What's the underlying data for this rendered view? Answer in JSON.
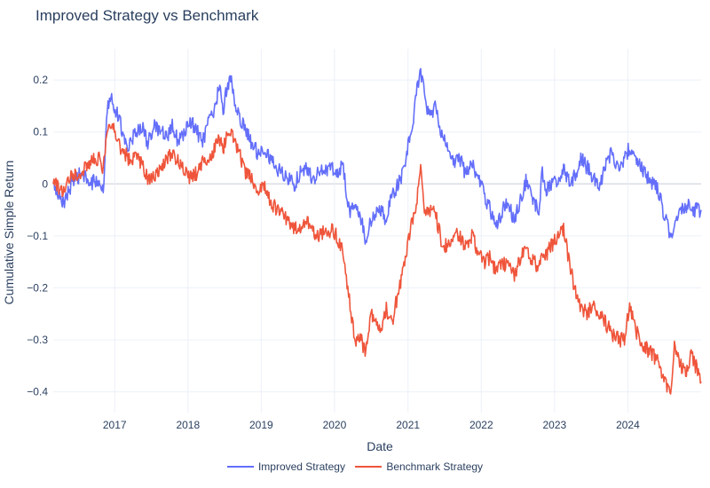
{
  "chart_data": {
    "type": "line",
    "title": "Improved Strategy vs Benchmark",
    "xlabel": "Date",
    "ylabel": "Cumulative Simple Return",
    "x_range": [
      "2016-03-01",
      "2024-12-31"
    ],
    "ylim": [
      -0.44,
      0.26
    ],
    "x_ticks": [
      "2017",
      "2018",
      "2019",
      "2020",
      "2021",
      "2022",
      "2023",
      "2024"
    ],
    "y_ticks": [
      0.2,
      0.1,
      0,
      -0.1,
      -0.2,
      -0.3,
      -0.4
    ],
    "y_tick_labels": [
      "0.2",
      "0.1",
      "0",
      "−0.1",
      "−0.2",
      "−0.3",
      "−0.4"
    ],
    "grid": true,
    "legend_position": "bottom-center",
    "series": [
      {
        "name": "Improved Strategy",
        "color": "#636efa",
        "points": [
          [
            "2016-03-01",
            0.0
          ],
          [
            "2016-04-15",
            -0.04
          ],
          [
            "2016-06-01",
            0.0
          ],
          [
            "2016-07-15",
            0.02
          ],
          [
            "2016-09-01",
            0.0
          ],
          [
            "2016-10-15",
            0.01
          ],
          [
            "2016-11-05",
            -0.02
          ],
          [
            "2016-11-25",
            0.15
          ],
          [
            "2016-12-10",
            0.17
          ],
          [
            "2017-01-10",
            0.14
          ],
          [
            "2017-02-10",
            0.1
          ],
          [
            "2017-03-10",
            0.07
          ],
          [
            "2017-04-15",
            0.1
          ],
          [
            "2017-05-15",
            0.11
          ],
          [
            "2017-06-15",
            0.08
          ],
          [
            "2017-07-15",
            0.11
          ],
          [
            "2017-08-15",
            0.1
          ],
          [
            "2017-09-15",
            0.09
          ],
          [
            "2017-10-15",
            0.11
          ],
          [
            "2017-11-15",
            0.08
          ],
          [
            "2017-12-15",
            0.1
          ],
          [
            "2018-01-15",
            0.12
          ],
          [
            "2018-02-15",
            0.1
          ],
          [
            "2018-03-15",
            0.08
          ],
          [
            "2018-04-15",
            0.12
          ],
          [
            "2018-05-15",
            0.14
          ],
          [
            "2018-06-05",
            0.19
          ],
          [
            "2018-06-25",
            0.14
          ],
          [
            "2018-07-15",
            0.19
          ],
          [
            "2018-08-05",
            0.2
          ],
          [
            "2018-08-25",
            0.15
          ],
          [
            "2018-09-15",
            0.13
          ],
          [
            "2018-10-15",
            0.1
          ],
          [
            "2018-11-15",
            0.08
          ],
          [
            "2018-12-15",
            0.06
          ],
          [
            "2019-01-15",
            0.07
          ],
          [
            "2019-02-15",
            0.05
          ],
          [
            "2019-03-15",
            0.03
          ],
          [
            "2019-04-15",
            0.02
          ],
          [
            "2019-05-15",
            0.01
          ],
          [
            "2019-06-15",
            0.0
          ],
          [
            "2019-07-15",
            0.02
          ],
          [
            "2019-08-15",
            0.03
          ],
          [
            "2019-09-15",
            0.01
          ],
          [
            "2019-10-15",
            0.02
          ],
          [
            "2019-11-15",
            0.03
          ],
          [
            "2019-12-15",
            0.03
          ],
          [
            "2020-01-15",
            0.02
          ],
          [
            "2020-02-10",
            0.04
          ],
          [
            "2020-02-25",
            0.0
          ],
          [
            "2020-03-15",
            -0.06
          ],
          [
            "2020-04-10",
            -0.04
          ],
          [
            "2020-05-15",
            -0.07
          ],
          [
            "2020-06-05",
            -0.11
          ],
          [
            "2020-06-25",
            -0.08
          ],
          [
            "2020-07-15",
            -0.06
          ],
          [
            "2020-08-15",
            -0.05
          ],
          [
            "2020-09-15",
            -0.07
          ],
          [
            "2020-10-15",
            -0.02
          ],
          [
            "2020-11-15",
            0.0
          ],
          [
            "2020-12-15",
            0.03
          ],
          [
            "2021-01-05",
            0.08
          ],
          [
            "2021-01-25",
            0.12
          ],
          [
            "2021-02-15",
            0.18
          ],
          [
            "2021-03-05",
            0.22
          ],
          [
            "2021-03-20",
            0.18
          ],
          [
            "2021-04-10",
            0.14
          ],
          [
            "2021-05-01",
            0.13
          ],
          [
            "2021-05-20",
            0.15
          ],
          [
            "2021-06-15",
            0.1
          ],
          [
            "2021-07-15",
            0.07
          ],
          [
            "2021-08-15",
            0.04
          ],
          [
            "2021-09-15",
            0.05
          ],
          [
            "2021-10-15",
            0.02
          ],
          [
            "2021-11-15",
            0.04
          ],
          [
            "2021-12-15",
            0.01
          ],
          [
            "2022-01-15",
            -0.02
          ],
          [
            "2022-02-15",
            -0.05
          ],
          [
            "2022-03-15",
            -0.08
          ],
          [
            "2022-04-15",
            -0.05
          ],
          [
            "2022-05-15",
            -0.04
          ],
          [
            "2022-06-15",
            -0.07
          ],
          [
            "2022-07-15",
            -0.03
          ],
          [
            "2022-08-15",
            0.01
          ],
          [
            "2022-09-15",
            -0.03
          ],
          [
            "2022-10-15",
            -0.05
          ],
          [
            "2022-11-01",
            0.03
          ],
          [
            "2022-11-15",
            -0.02
          ],
          [
            "2022-12-15",
            0.0
          ],
          [
            "2023-01-15",
            0.01
          ],
          [
            "2023-02-15",
            0.03
          ],
          [
            "2023-03-15",
            0.0
          ],
          [
            "2023-04-15",
            0.02
          ],
          [
            "2023-05-15",
            0.05
          ],
          [
            "2023-06-15",
            0.03
          ],
          [
            "2023-07-15",
            0.01
          ],
          [
            "2023-08-15",
            0.0
          ],
          [
            "2023-09-15",
            0.04
          ],
          [
            "2023-10-15",
            0.06
          ],
          [
            "2023-11-15",
            0.03
          ],
          [
            "2023-12-15",
            0.05
          ],
          [
            "2024-01-10",
            0.07
          ],
          [
            "2024-02-10",
            0.05
          ],
          [
            "2024-03-10",
            0.03
          ],
          [
            "2024-04-10",
            0.01
          ],
          [
            "2024-05-10",
            0.0
          ],
          [
            "2024-06-10",
            -0.02
          ],
          [
            "2024-06-25",
            -0.05
          ],
          [
            "2024-07-10",
            -0.07
          ],
          [
            "2024-08-01",
            -0.1
          ],
          [
            "2024-08-20",
            -0.08
          ],
          [
            "2024-09-15",
            -0.06
          ],
          [
            "2024-10-15",
            -0.04
          ],
          [
            "2024-11-15",
            -0.05
          ],
          [
            "2024-12-31",
            -0.05
          ]
        ]
      },
      {
        "name": "Benchmark Strategy",
        "color": "#ef553b",
        "points": [
          [
            "2016-03-01",
            0.0
          ],
          [
            "2016-04-15",
            -0.01
          ],
          [
            "2016-06-01",
            0.02
          ],
          [
            "2016-07-15",
            0.02
          ],
          [
            "2016-09-01",
            0.04
          ],
          [
            "2016-10-15",
            0.05
          ],
          [
            "2016-11-05",
            0.03
          ],
          [
            "2016-11-25",
            0.1
          ],
          [
            "2016-12-10",
            0.12
          ],
          [
            "2017-01-10",
            0.09
          ],
          [
            "2017-02-10",
            0.06
          ],
          [
            "2017-03-10",
            0.05
          ],
          [
            "2017-04-15",
            0.05
          ],
          [
            "2017-05-15",
            0.04
          ],
          [
            "2017-06-15",
            0.01
          ],
          [
            "2017-07-15",
            0.01
          ],
          [
            "2017-08-15",
            0.03
          ],
          [
            "2017-09-15",
            0.05
          ],
          [
            "2017-10-15",
            0.06
          ],
          [
            "2017-11-15",
            0.04
          ],
          [
            "2017-12-15",
            0.03
          ],
          [
            "2018-01-15",
            0.01
          ],
          [
            "2018-02-15",
            0.02
          ],
          [
            "2018-03-15",
            0.04
          ],
          [
            "2018-04-15",
            0.05
          ],
          [
            "2018-05-15",
            0.07
          ],
          [
            "2018-06-05",
            0.09
          ],
          [
            "2018-06-25",
            0.07
          ],
          [
            "2018-07-15",
            0.09
          ],
          [
            "2018-08-05",
            0.1
          ],
          [
            "2018-08-25",
            0.08
          ],
          [
            "2018-09-15",
            0.06
          ],
          [
            "2018-10-15",
            0.02
          ],
          [
            "2018-11-15",
            0.01
          ],
          [
            "2018-12-15",
            -0.02
          ],
          [
            "2019-01-15",
            0.0
          ],
          [
            "2019-02-15",
            -0.03
          ],
          [
            "2019-03-15",
            -0.05
          ],
          [
            "2019-04-15",
            -0.06
          ],
          [
            "2019-05-15",
            -0.07
          ],
          [
            "2019-06-15",
            -0.09
          ],
          [
            "2019-07-15",
            -0.08
          ],
          [
            "2019-08-15",
            -0.07
          ],
          [
            "2019-09-15",
            -0.09
          ],
          [
            "2019-10-15",
            -0.1
          ],
          [
            "2019-11-15",
            -0.09
          ],
          [
            "2019-12-15",
            -0.09
          ],
          [
            "2020-01-15",
            -0.1
          ],
          [
            "2020-02-10",
            -0.13
          ],
          [
            "2020-02-25",
            -0.17
          ],
          [
            "2020-03-15",
            -0.22
          ],
          [
            "2020-04-10",
            -0.3
          ],
          [
            "2020-05-15",
            -0.3
          ],
          [
            "2020-06-05",
            -0.33
          ],
          [
            "2020-06-25",
            -0.26
          ],
          [
            "2020-07-15",
            -0.25
          ],
          [
            "2020-08-15",
            -0.28
          ],
          [
            "2020-09-15",
            -0.24
          ],
          [
            "2020-10-15",
            -0.27
          ],
          [
            "2020-11-15",
            -0.2
          ],
          [
            "2020-12-15",
            -0.16
          ],
          [
            "2021-01-05",
            -0.1
          ],
          [
            "2021-01-25",
            -0.07
          ],
          [
            "2021-02-15",
            -0.03
          ],
          [
            "2021-03-05",
            0.03
          ],
          [
            "2021-03-20",
            -0.04
          ],
          [
            "2021-04-10",
            -0.06
          ],
          [
            "2021-05-01",
            -0.05
          ],
          [
            "2021-05-20",
            -0.06
          ],
          [
            "2021-06-15",
            -0.11
          ],
          [
            "2021-07-15",
            -0.12
          ],
          [
            "2021-08-15",
            -0.1
          ],
          [
            "2021-09-15",
            -0.1
          ],
          [
            "2021-10-15",
            -0.12
          ],
          [
            "2021-11-15",
            -0.1
          ],
          [
            "2021-12-15",
            -0.13
          ],
          [
            "2022-01-15",
            -0.15
          ],
          [
            "2022-02-15",
            -0.14
          ],
          [
            "2022-03-15",
            -0.17
          ],
          [
            "2022-04-15",
            -0.15
          ],
          [
            "2022-05-15",
            -0.16
          ],
          [
            "2022-06-15",
            -0.18
          ],
          [
            "2022-07-15",
            -0.14
          ],
          [
            "2022-08-15",
            -0.13
          ],
          [
            "2022-09-15",
            -0.15
          ],
          [
            "2022-10-15",
            -0.16
          ],
          [
            "2022-11-01",
            -0.13
          ],
          [
            "2022-11-15",
            -0.14
          ],
          [
            "2022-12-15",
            -0.12
          ],
          [
            "2023-01-15",
            -0.1
          ],
          [
            "2023-02-15",
            -0.09
          ],
          [
            "2023-03-15",
            -0.15
          ],
          [
            "2023-04-15",
            -0.21
          ],
          [
            "2023-05-15",
            -0.24
          ],
          [
            "2023-06-15",
            -0.25
          ],
          [
            "2023-07-15",
            -0.23
          ],
          [
            "2023-08-15",
            -0.25
          ],
          [
            "2023-09-15",
            -0.27
          ],
          [
            "2023-10-15",
            -0.29
          ],
          [
            "2023-11-15",
            -0.3
          ],
          [
            "2023-12-15",
            -0.3
          ],
          [
            "2024-01-10",
            -0.23
          ],
          [
            "2024-02-10",
            -0.28
          ],
          [
            "2024-03-10",
            -0.31
          ],
          [
            "2024-04-10",
            -0.32
          ],
          [
            "2024-05-10",
            -0.33
          ],
          [
            "2024-06-10",
            -0.35
          ],
          [
            "2024-06-25",
            -0.37
          ],
          [
            "2024-07-10",
            -0.39
          ],
          [
            "2024-08-01",
            -0.41
          ],
          [
            "2024-08-20",
            -0.3
          ],
          [
            "2024-09-15",
            -0.35
          ],
          [
            "2024-10-15",
            -0.36
          ],
          [
            "2024-11-15",
            -0.33
          ],
          [
            "2024-12-31",
            -0.38
          ]
        ]
      }
    ]
  }
}
